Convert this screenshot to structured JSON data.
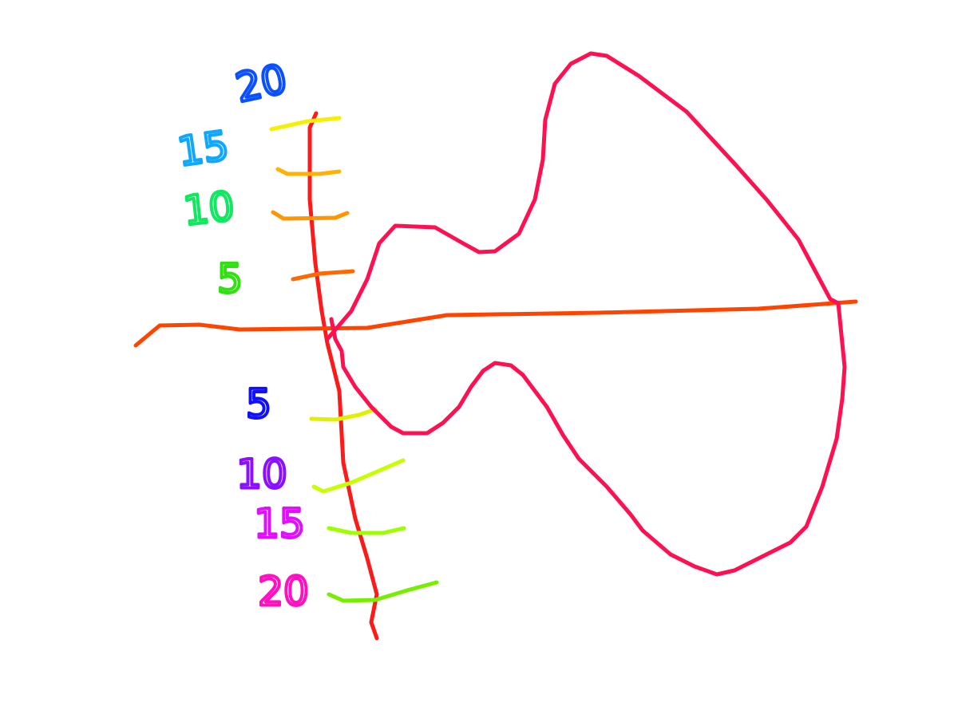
{
  "labels": {
    "upper": [
      "20",
      "15",
      "10",
      "5"
    ],
    "lower": [
      "5",
      "10",
      "15",
      "20"
    ]
  }
}
